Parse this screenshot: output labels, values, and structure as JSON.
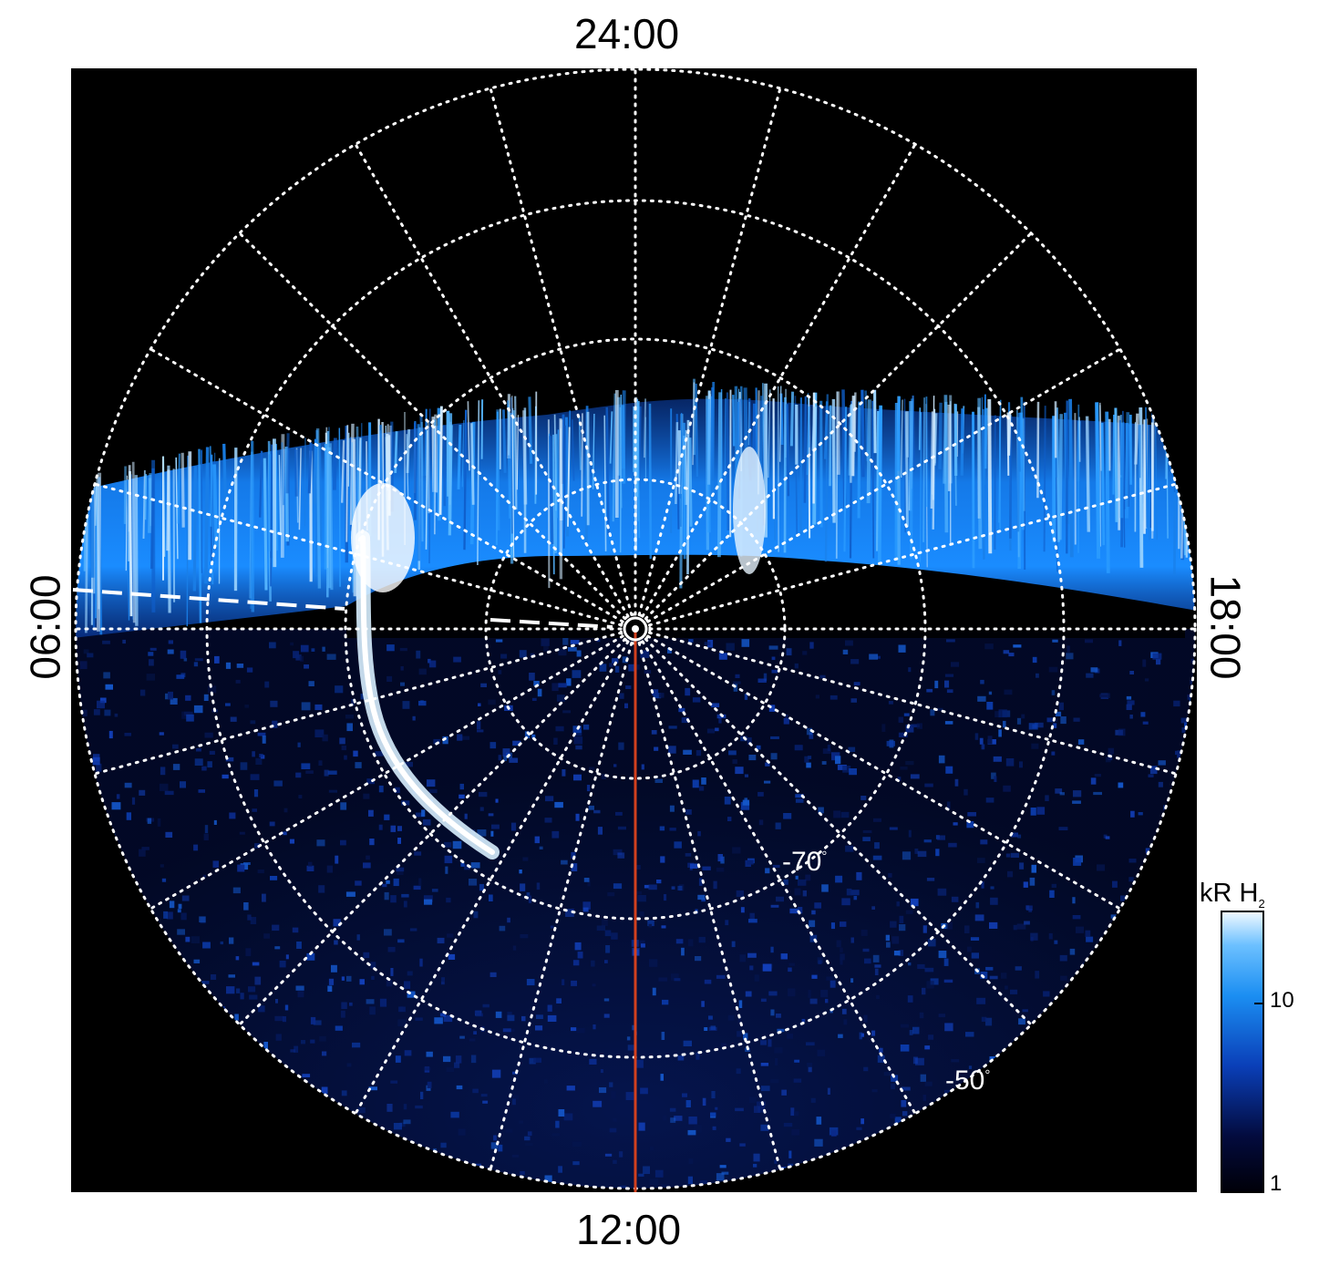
{
  "local_time_labels": {
    "top": "24:00",
    "bottom": "12:00",
    "left": "06:00",
    "right": "18:00"
  },
  "latitude_labels": {
    "lat_70": "-70",
    "lat_50": "-50",
    "degree_symbol": "°"
  },
  "colorbar": {
    "unit_prefix": "kR H",
    "unit_subscript": "2",
    "tick_labels": [
      "1",
      "10"
    ],
    "scale": "log"
  },
  "colors": {
    "background": "#000000",
    "grid": "#ffffff",
    "aurora_bright": "#e6f4ff",
    "aurora_mid": "#1a8cff",
    "aurora_dim": "#04114f",
    "meridian_line": "#d2401e"
  },
  "icons": {
    "pole_marker": "circle-dot-icon"
  }
}
